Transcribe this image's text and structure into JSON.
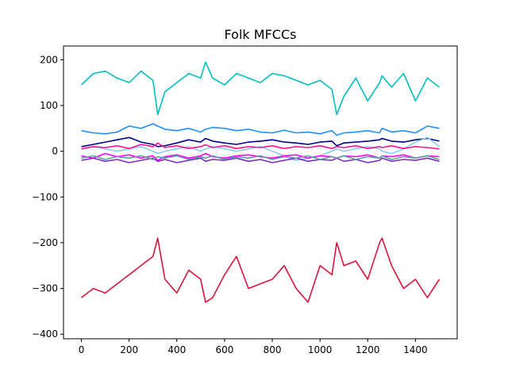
{
  "chart_data": {
    "type": "line",
    "title": "Folk MFCCs",
    "xlabel": "",
    "ylabel": "",
    "xlim": [
      -75,
      1575
    ],
    "ylim": [
      -410,
      230
    ],
    "x_ticks": [
      0,
      200,
      400,
      600,
      800,
      1000,
      1200,
      1400
    ],
    "y_ticks": [
      200,
      100,
      0,
      -100,
      -200,
      -300,
      -400
    ],
    "grid": false,
    "x": [
      0,
      50,
      100,
      150,
      200,
      250,
      300,
      320,
      350,
      400,
      450,
      500,
      520,
      550,
      600,
      650,
      700,
      750,
      800,
      850,
      900,
      950,
      1000,
      1050,
      1070,
      1100,
      1150,
      1200,
      1250,
      1260,
      1300,
      1350,
      1400,
      1450,
      1500
    ],
    "series": [
      {
        "color": "#dc143c",
        "values": [
          -320,
          -300,
          -310,
          -290,
          -270,
          -250,
          -230,
          -190,
          -280,
          -310,
          -260,
          -280,
          -330,
          -320,
          -270,
          -230,
          -300,
          -290,
          -280,
          -250,
          -300,
          -330,
          -250,
          -270,
          -200,
          -250,
          -240,
          -280,
          -200,
          -190,
          -250,
          -300,
          -280,
          -320,
          -280
        ]
      },
      {
        "color": "#00bfbf",
        "values": [
          145,
          170,
          175,
          160,
          150,
          175,
          155,
          80,
          130,
          150,
          170,
          160,
          195,
          160,
          145,
          170,
          160,
          150,
          170,
          165,
          155,
          145,
          155,
          135,
          80,
          120,
          160,
          110,
          150,
          165,
          140,
          170,
          110,
          160,
          140
        ]
      },
      {
        "color": "#1e90ff",
        "values": [
          45,
          40,
          38,
          42,
          55,
          50,
          60,
          55,
          48,
          45,
          50,
          42,
          48,
          52,
          50,
          45,
          48,
          42,
          40,
          46,
          40,
          42,
          38,
          45,
          35,
          40,
          42,
          45,
          40,
          50,
          42,
          45,
          40,
          55,
          50
        ]
      },
      {
        "color": "#00008b",
        "values": [
          10,
          15,
          20,
          25,
          30,
          20,
          15,
          10,
          12,
          18,
          25,
          20,
          28,
          22,
          18,
          15,
          20,
          22,
          25,
          20,
          18,
          15,
          20,
          22,
          12,
          18,
          20,
          22,
          25,
          28,
          22,
          20,
          25,
          28,
          22
        ]
      },
      {
        "color": "#87ceeb",
        "values": [
          5,
          10,
          5,
          0,
          5,
          10,
          0,
          -5,
          0,
          5,
          10,
          0,
          5,
          10,
          5,
          0,
          5,
          10,
          0,
          -10,
          -20,
          -15,
          -10,
          0,
          5,
          0,
          5,
          10,
          5,
          0,
          -5,
          5,
          20,
          30,
          10
        ]
      },
      {
        "color": "#ff00ff",
        "values": [
          -10,
          -15,
          -5,
          -12,
          -8,
          -15,
          -10,
          -20,
          -12,
          -8,
          -15,
          -10,
          -5,
          -12,
          -15,
          -10,
          -8,
          -12,
          -15,
          -10,
          -8,
          -15,
          -10,
          -12,
          -15,
          -10,
          -12,
          -8,
          -15,
          -10,
          -12,
          -8,
          -15,
          -10,
          -12
        ]
      },
      {
        "color": "#7b2fbe",
        "values": [
          -20,
          -15,
          -22,
          -18,
          -25,
          -20,
          -15,
          -22,
          -18,
          -25,
          -20,
          -15,
          -22,
          -18,
          -20,
          -15,
          -22,
          -18,
          -25,
          -20,
          -15,
          -22,
          -18,
          -20,
          -15,
          -22,
          -18,
          -25,
          -20,
          -15,
          -22,
          -18,
          -20,
          -15,
          -22
        ]
      },
      {
        "color": "#ff1493",
        "values": [
          5,
          10,
          8,
          12,
          6,
          15,
          10,
          18,
          8,
          12,
          6,
          10,
          14,
          8,
          12,
          6,
          10,
          8,
          12,
          6,
          10,
          8,
          12,
          6,
          10,
          8,
          12,
          6,
          10,
          8,
          12,
          6,
          10,
          8,
          5
        ]
      },
      {
        "color": "#5f9ea0",
        "values": [
          -15,
          -10,
          -18,
          -12,
          -15,
          -10,
          -18,
          -12,
          -15,
          -10,
          -18,
          -12,
          -15,
          -10,
          -18,
          -12,
          -15,
          -10,
          -18,
          -12,
          -15,
          -10,
          -18,
          -12,
          -15,
          -10,
          -18,
          -12,
          -15,
          -10,
          -18,
          -12,
          -15,
          -10,
          -18
        ]
      }
    ]
  }
}
